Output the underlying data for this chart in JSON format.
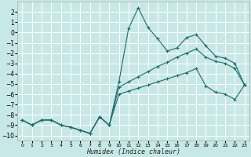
{
  "xlabel": "Humidex (Indice chaleur)",
  "bg_color": "#c8e8e8",
  "grid_color": "#ffffff",
  "line_color": "#1a6b6b",
  "xlim": [
    -0.5,
    23.5
  ],
  "ylim": [
    -10.5,
    3.0
  ],
  "xticks": [
    0,
    1,
    2,
    3,
    4,
    5,
    6,
    7,
    8,
    9,
    10,
    11,
    12,
    13,
    14,
    15,
    16,
    17,
    18,
    19,
    20,
    21,
    22,
    23
  ],
  "yticks": [
    2,
    1,
    0,
    -1,
    -2,
    -3,
    -4,
    -5,
    -6,
    -7,
    -8,
    -9,
    -10
  ],
  "curve1_x": [
    0,
    1,
    2,
    3,
    4,
    5,
    6,
    7,
    8,
    9,
    10,
    11,
    12,
    13,
    14,
    15,
    16,
    17,
    18,
    19,
    20,
    21,
    22,
    23
  ],
  "curve1_y": [
    -8.5,
    -9.0,
    -8.5,
    -8.5,
    -9.0,
    -9.2,
    -9.5,
    -9.8,
    -8.2,
    -9.0,
    -4.8,
    0.4,
    2.4,
    0.5,
    -0.6,
    -1.8,
    -1.5,
    -0.5,
    -0.2,
    -1.3,
    -2.3,
    -2.5,
    -3.0,
    -5.1
  ],
  "curve2_x": [
    0,
    1,
    2,
    3,
    4,
    5,
    6,
    7,
    8,
    9,
    10,
    11,
    12,
    13,
    14,
    15,
    16,
    17,
    18,
    19,
    20,
    21,
    22,
    23
  ],
  "curve2_y": [
    -8.5,
    -9.0,
    -8.5,
    -8.5,
    -9.0,
    -9.2,
    -9.5,
    -9.8,
    -8.2,
    -9.0,
    -5.3,
    -4.8,
    -4.3,
    -3.8,
    -3.3,
    -2.9,
    -2.4,
    -2.0,
    -1.6,
    -2.4,
    -2.8,
    -3.0,
    -3.5,
    -5.1
  ],
  "curve3_x": [
    0,
    1,
    2,
    3,
    4,
    5,
    6,
    7,
    8,
    9,
    10,
    11,
    12,
    13,
    14,
    15,
    16,
    17,
    18,
    19,
    20,
    21,
    22,
    23
  ],
  "curve3_y": [
    -8.5,
    -9.0,
    -8.5,
    -8.5,
    -9.0,
    -9.2,
    -9.5,
    -9.8,
    -8.2,
    -9.0,
    -6.0,
    -5.7,
    -5.4,
    -5.1,
    -4.8,
    -4.5,
    -4.2,
    -3.9,
    -3.5,
    -5.2,
    -5.8,
    -6.0,
    -6.5,
    -5.1
  ]
}
